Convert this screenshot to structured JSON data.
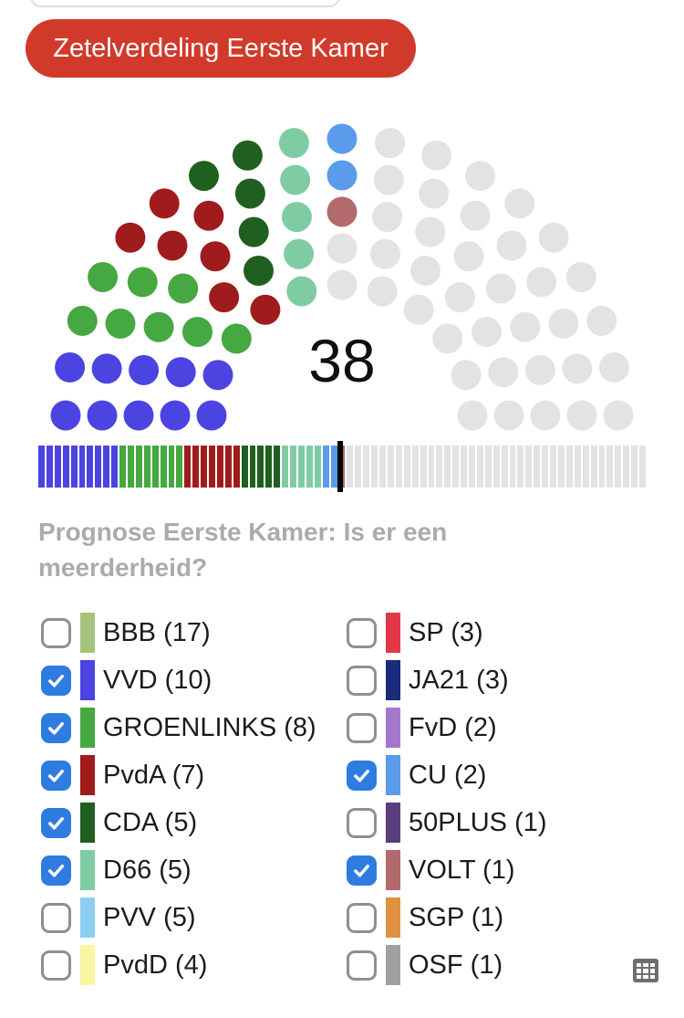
{
  "header": {
    "button_label": "Zetelverdeling Eerste Kamer"
  },
  "main": {
    "question": "Prognose Eerste Kamer: Is er een meerderheid?"
  },
  "colors": {
    "button_red": "#d13a2b",
    "checkbox_checked_blue": "#2e7ce0",
    "checkbox_border_gray": "#8f8f8f",
    "heading_gray": "#ababab",
    "label_text": "#1b1b1b",
    "inactive_seat_gray": "#e3e3e3",
    "majority_marker_black": "#000000",
    "table_icon_gray": "#6e6e6e"
  },
  "icons": {
    "checkbox_check": "check-mark",
    "bottom_right": "table-grid-3x3"
  },
  "chart_data": {
    "type": "parliament-hemicycle",
    "title": "Zetelverdeling Eerste Kamer",
    "total_seats": 75,
    "rows": [
      11,
      13,
      15,
      17,
      19
    ],
    "selected_total": "38",
    "majority_marker_after_seat": 37.5,
    "inactive_color": "#e3e3e3",
    "legend_position": "bottom, two columns with checkboxes",
    "series": [
      {
        "party": "BBB",
        "seats": 17,
        "color": "#a5c37d",
        "checked": false,
        "column": "left"
      },
      {
        "party": "VVD",
        "seats": 10,
        "color": "#4b44e0",
        "checked": true,
        "column": "left"
      },
      {
        "party": "GROENLINKS",
        "seats": 8,
        "color": "#45a840",
        "checked": true,
        "column": "left"
      },
      {
        "party": "PvdA",
        "seats": 7,
        "color": "#a01c1c",
        "checked": true,
        "column": "left"
      },
      {
        "party": "CDA",
        "seats": 5,
        "color": "#1f5f1f",
        "checked": true,
        "column": "left"
      },
      {
        "party": "D66",
        "seats": 5,
        "color": "#7fcca3",
        "checked": true,
        "column": "left"
      },
      {
        "party": "PVV",
        "seats": 5,
        "color": "#8dcff1",
        "checked": false,
        "column": "left"
      },
      {
        "party": "PvdD",
        "seats": 4,
        "color": "#fbf6a2",
        "checked": false,
        "column": "left"
      },
      {
        "party": "SP",
        "seats": 3,
        "color": "#e23846",
        "checked": false,
        "column": "right"
      },
      {
        "party": "JA21",
        "seats": 3,
        "color": "#1b2c7c",
        "checked": false,
        "column": "right"
      },
      {
        "party": "FvD",
        "seats": 2,
        "color": "#a477ce",
        "checked": false,
        "column": "right"
      },
      {
        "party": "CU",
        "seats": 2,
        "color": "#5a9beb",
        "checked": true,
        "column": "right"
      },
      {
        "party": "50PLUS",
        "seats": 1,
        "color": "#5a3d7c",
        "checked": false,
        "column": "right"
      },
      {
        "party": "VOLT",
        "seats": 1,
        "color": "#b26a6c",
        "checked": true,
        "column": "right"
      },
      {
        "party": "SGP",
        "seats": 1,
        "color": "#e19240",
        "checked": false,
        "column": "right"
      },
      {
        "party": "OSF",
        "seats": 1,
        "color": "#9fa0a2",
        "checked": false,
        "column": "right"
      }
    ]
  }
}
